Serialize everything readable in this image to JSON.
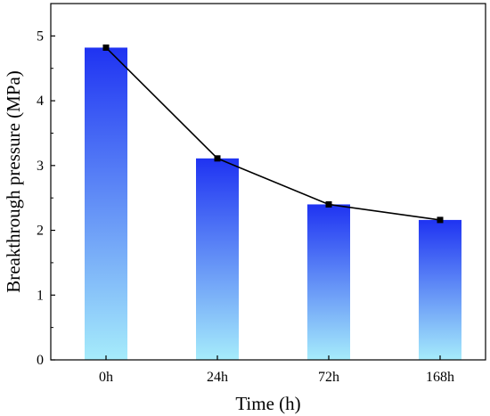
{
  "chart_data": {
    "type": "bar",
    "categories": [
      "0h",
      "24h",
      "72h",
      "168h"
    ],
    "values": [
      4.82,
      3.11,
      2.4,
      2.16
    ],
    "line_overlay": true,
    "xlabel": "Time (h)",
    "ylabel": "Breakthrough pressure (MPa)",
    "ylim": [
      0,
      5.5
    ],
    "yticks": [
      0,
      1,
      2,
      3,
      4,
      5
    ],
    "grid": false,
    "legend": "none",
    "colors": {
      "bar_top": "#1f33f2",
      "bar_bottom": "#a6ecfb",
      "line": "#000000",
      "marker": "#000000"
    }
  }
}
